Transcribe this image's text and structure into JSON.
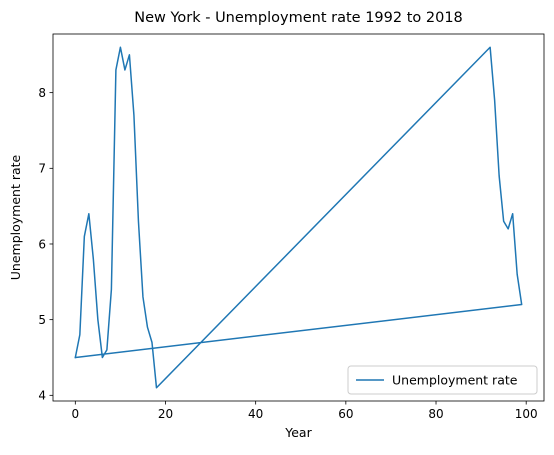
{
  "chart_data": {
    "type": "line",
    "title": "New York - Unemployment rate 1992 to 2018",
    "xlabel": "Year",
    "ylabel": "Unemployment rate",
    "xlim": [
      -4.95,
      103.95
    ],
    "ylim": [
      3.925,
      8.775
    ],
    "xticks": [
      0,
      20,
      40,
      60,
      80,
      100
    ],
    "yticks": [
      4,
      5,
      6,
      7,
      8
    ],
    "grid": false,
    "legend_position": "lower-right",
    "series": [
      {
        "name": "Unemployment rate",
        "color": "#1f77b4",
        "x": [
          0,
          1,
          2,
          3,
          4,
          5,
          6,
          7,
          8,
          9,
          10,
          11,
          12,
          13,
          14,
          15,
          16,
          17,
          18,
          92,
          93,
          94,
          95,
          96,
          97,
          98,
          99,
          0
        ],
        "y": [
          4.5,
          4.8,
          6.1,
          6.4,
          5.8,
          5.0,
          4.5,
          4.6,
          5.4,
          8.3,
          8.6,
          8.3,
          8.5,
          7.7,
          6.3,
          5.3,
          4.9,
          4.7,
          4.1,
          8.6,
          7.9,
          6.9,
          6.3,
          6.2,
          6.4,
          5.6,
          5.2,
          4.5
        ]
      }
    ]
  }
}
